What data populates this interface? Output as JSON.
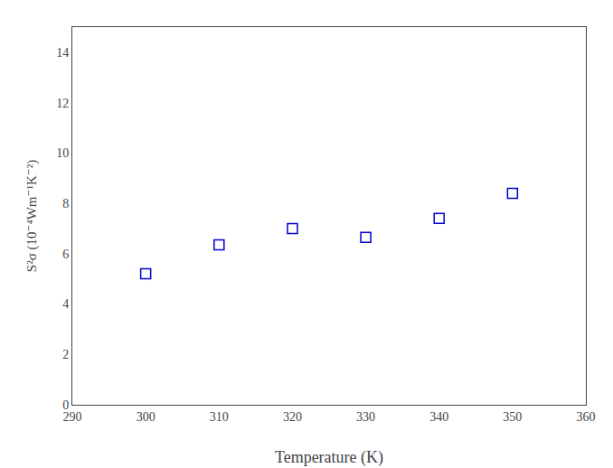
{
  "chart_data": {
    "type": "scatter",
    "x": [
      300,
      310,
      320,
      330,
      340,
      350
    ],
    "y": [
      5.2,
      6.35,
      7.0,
      6.65,
      7.4,
      8.4
    ],
    "xlabel": "Temperature (K)",
    "ylabel": "S²σ (10⁻⁴Wm⁻¹K⁻²)",
    "xlim": [
      290,
      360
    ],
    "ylim": [
      0,
      15
    ],
    "xticks": [
      290,
      300,
      310,
      320,
      330,
      340,
      350,
      360
    ],
    "yticks": [
      0,
      2,
      4,
      6,
      8,
      10,
      12,
      14
    ],
    "color": "#0000cc",
    "marker": "square",
    "grid": false
  }
}
